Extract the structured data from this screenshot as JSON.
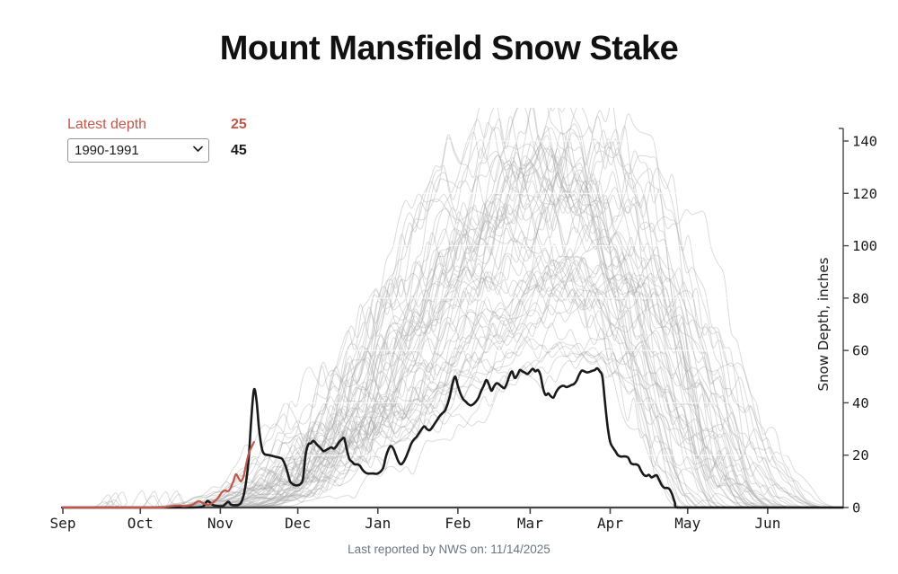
{
  "title": "Mount Mansfield Snow Stake",
  "controls": {
    "latest_depth_label": "Latest depth",
    "latest_depth_value": "25",
    "season_select": {
      "selected": "1990-1991",
      "options": [
        "1990-1991"
      ]
    },
    "selected_season_depth": "45"
  },
  "footer": {
    "text": "Last reported by NWS on: 11/14/2025"
  },
  "colors": {
    "latest": "#c1574a",
    "selected": "#1a1a1a",
    "ensemble": "#aaaaaa",
    "gridline": "#ffffff",
    "axis": "#454545",
    "tick_text": "#1a1a1a",
    "footer_text": "#6b7685"
  },
  "chart_data": {
    "type": "line",
    "title": "Mount Mansfield Snow Stake",
    "ylabel": "Snow Depth, inches",
    "x_axis": {
      "tick_labels": [
        "Sep",
        "Oct",
        "Nov",
        "Dec",
        "Jan",
        "Feb",
        "Mar",
        "Apr",
        "May",
        "Jun"
      ],
      "tick_days": [
        0,
        30,
        61,
        91,
        122,
        153,
        181,
        212,
        242,
        273
      ],
      "day_range": [
        0,
        302
      ],
      "note": "x = days since Sep 1 of the snow season"
    },
    "y_axis": {
      "ticks": [
        0,
        20,
        40,
        60,
        80,
        100,
        120,
        140
      ],
      "range": [
        0,
        148
      ],
      "side": "right"
    },
    "gridlines": {
      "values": [
        20,
        40,
        60,
        80,
        100,
        120,
        140
      ],
      "drawn_over_ensemble": true
    },
    "series": [
      {
        "name": "1990-1991",
        "role": "selected-season",
        "color_key": "selected",
        "width": 2.6,
        "points": [
          [
            0,
            0
          ],
          [
            12,
            0
          ],
          [
            25,
            0
          ],
          [
            38,
            0
          ],
          [
            48,
            0
          ],
          [
            54,
            0.3
          ],
          [
            56,
            2.5
          ],
          [
            58,
            1
          ],
          [
            60,
            0.6
          ],
          [
            62,
            0.6
          ],
          [
            64,
            2.2
          ],
          [
            65,
            1.2
          ],
          [
            66,
            0.9
          ],
          [
            68,
            1
          ],
          [
            69,
            1.8
          ],
          [
            70,
            4.6
          ],
          [
            71,
            10
          ],
          [
            72,
            19
          ],
          [
            73,
            34
          ],
          [
            74,
            45
          ],
          [
            75,
            41
          ],
          [
            76,
            30
          ],
          [
            77,
            23
          ],
          [
            78,
            20.5
          ],
          [
            80,
            20
          ],
          [
            82,
            19.5
          ],
          [
            84,
            19
          ],
          [
            85,
            18.5
          ],
          [
            86,
            16.5
          ],
          [
            87,
            13.5
          ],
          [
            88,
            10
          ],
          [
            89,
            9
          ],
          [
            90,
            8.5
          ],
          [
            91,
            8.5
          ],
          [
            92,
            9
          ],
          [
            93,
            11
          ],
          [
            94,
            20
          ],
          [
            95,
            24
          ],
          [
            96,
            24.5
          ],
          [
            97,
            25.5
          ],
          [
            98,
            24.5
          ],
          [
            99,
            23.5
          ],
          [
            100,
            22.5
          ],
          [
            101,
            21.5
          ],
          [
            102,
            22
          ],
          [
            103,
            22.5
          ],
          [
            104,
            23
          ],
          [
            105,
            22.5
          ],
          [
            106,
            23.5
          ],
          [
            107,
            25
          ],
          [
            108,
            26
          ],
          [
            109,
            26.4
          ],
          [
            110,
            22
          ],
          [
            111,
            18.5
          ],
          [
            112,
            17.5
          ],
          [
            113,
            16.5
          ],
          [
            114,
            16.5
          ],
          [
            115,
            16
          ],
          [
            116,
            14.5
          ],
          [
            117,
            13.5
          ],
          [
            118,
            13
          ],
          [
            120,
            13
          ],
          [
            122,
            13
          ],
          [
            124,
            15
          ],
          [
            125,
            19
          ],
          [
            126,
            22
          ],
          [
            127,
            23.5
          ],
          [
            128,
            22.5
          ],
          [
            129,
            20
          ],
          [
            130,
            17.5
          ],
          [
            131,
            16.5
          ],
          [
            132,
            17.5
          ],
          [
            133,
            19.5
          ],
          [
            134,
            22
          ],
          [
            135,
            24.5
          ],
          [
            136,
            26
          ],
          [
            137,
            27
          ],
          [
            138,
            28.5
          ],
          [
            139,
            30
          ],
          [
            140,
            31
          ],
          [
            141,
            30
          ],
          [
            142,
            29.5
          ],
          [
            143,
            30.5
          ],
          [
            144,
            32
          ],
          [
            145,
            33.5
          ],
          [
            146,
            35
          ],
          [
            147,
            36
          ],
          [
            148,
            37
          ],
          [
            149,
            39.5
          ],
          [
            150,
            43
          ],
          [
            151,
            47.5
          ],
          [
            152,
            50
          ],
          [
            153,
            46.5
          ],
          [
            154,
            43.5
          ],
          [
            155,
            41.5
          ],
          [
            156,
            40.5
          ],
          [
            157,
            39.5
          ],
          [
            158,
            39
          ],
          [
            159,
            39.5
          ],
          [
            160,
            40.5
          ],
          [
            161,
            42
          ],
          [
            162,
            44.5
          ],
          [
            163,
            46.5
          ],
          [
            164,
            48.7
          ],
          [
            165,
            47
          ],
          [
            166,
            44.6
          ],
          [
            167,
            46.3
          ],
          [
            168,
            47.5
          ],
          [
            169,
            47
          ],
          [
            170,
            46.2
          ],
          [
            171,
            45.6
          ],
          [
            172,
            47.5
          ],
          [
            173,
            50.4
          ],
          [
            174,
            52
          ],
          [
            175,
            49.5
          ],
          [
            176,
            50.5
          ],
          [
            177,
            52.5
          ],
          [
            178,
            52
          ],
          [
            179,
            51.5
          ],
          [
            180,
            51
          ],
          [
            181,
            52
          ],
          [
            182,
            53
          ],
          [
            183,
            52
          ],
          [
            184,
            52.5
          ],
          [
            185,
            50.5
          ],
          [
            186,
            45.5
          ],
          [
            187,
            43
          ],
          [
            188,
            43.6
          ],
          [
            189,
            42.5
          ],
          [
            190,
            42
          ],
          [
            191,
            44
          ],
          [
            192,
            45.5
          ],
          [
            193,
            46.3
          ],
          [
            194,
            46.5
          ],
          [
            195,
            46
          ],
          [
            196,
            46.3
          ],
          [
            197,
            46.8
          ],
          [
            198,
            47.2
          ],
          [
            199,
            48.5
          ],
          [
            200,
            50.8
          ],
          [
            201,
            52.3
          ],
          [
            202,
            52
          ],
          [
            203,
            51.6
          ],
          [
            204,
            51.8
          ],
          [
            205,
            52.2
          ],
          [
            206,
            52.5
          ],
          [
            207,
            53.2
          ],
          [
            208,
            52
          ],
          [
            209,
            49.8
          ],
          [
            210,
            40
          ],
          [
            211,
            31
          ],
          [
            212,
            25
          ],
          [
            213,
            23
          ],
          [
            214,
            21.5
          ],
          [
            215,
            20
          ],
          [
            216,
            19.5
          ],
          [
            217,
            19.5
          ],
          [
            218,
            19.5
          ],
          [
            219,
            19
          ],
          [
            220,
            17
          ],
          [
            221,
            16.5
          ],
          [
            222,
            16.5
          ],
          [
            223,
            16
          ],
          [
            224,
            14
          ],
          [
            225,
            12.5
          ],
          [
            226,
            12
          ],
          [
            227,
            12.5
          ],
          [
            228,
            11.5
          ],
          [
            229,
            12
          ],
          [
            230,
            12.3
          ],
          [
            231,
            10.5
          ],
          [
            232,
            8.5
          ],
          [
            233,
            7.5
          ],
          [
            234,
            7.5
          ],
          [
            235,
            7
          ],
          [
            236,
            5
          ],
          [
            237,
            2
          ],
          [
            238,
            0
          ],
          [
            245,
            0
          ],
          [
            255,
            0
          ],
          [
            265,
            0
          ],
          [
            275,
            0
          ],
          [
            285,
            0
          ],
          [
            295,
            0
          ],
          [
            302,
            0
          ]
        ]
      },
      {
        "name": "Latest",
        "role": "current-season",
        "color_key": "latest",
        "width": 2.2,
        "points": [
          [
            0,
            0
          ],
          [
            10,
            0
          ],
          [
            20,
            0
          ],
          [
            30,
            0
          ],
          [
            38,
            0
          ],
          [
            42,
            0.5
          ],
          [
            45,
            0.8
          ],
          [
            47,
            0.5
          ],
          [
            50,
            1
          ],
          [
            52,
            2.2
          ],
          [
            53,
            2.4
          ],
          [
            54,
            1.8
          ],
          [
            55,
            1.4
          ],
          [
            56,
            1
          ],
          [
            57,
            1.2
          ],
          [
            58,
            1.8
          ],
          [
            59,
            2.5
          ],
          [
            60,
            3.5
          ],
          [
            61,
            5
          ],
          [
            62,
            6.2
          ],
          [
            63,
            6.5
          ],
          [
            64,
            6.2
          ],
          [
            65,
            7.5
          ],
          [
            66,
            10
          ],
          [
            67,
            12.7
          ],
          [
            68,
            11.3
          ],
          [
            69,
            10
          ],
          [
            70,
            12
          ],
          [
            71,
            16.5
          ],
          [
            72,
            20.6
          ],
          [
            73,
            23
          ],
          [
            74,
            25
          ]
        ]
      }
    ],
    "background_ensemble": {
      "description": "Approximately 58 faint gray lines showing historical season snow-depth traces; they start rising Oct-Nov, peak between mid-Feb and mid-Apr at roughly 55-148 inches, and melt out to 0 between late April and early July.",
      "count": 58,
      "seed": 20251114,
      "start_day_range": [
        28,
        72
      ],
      "peak_day_range": [
        168,
        226
      ],
      "peak_height_range": [
        55,
        148
      ],
      "end_day_range": [
        238,
        302
      ]
    }
  }
}
